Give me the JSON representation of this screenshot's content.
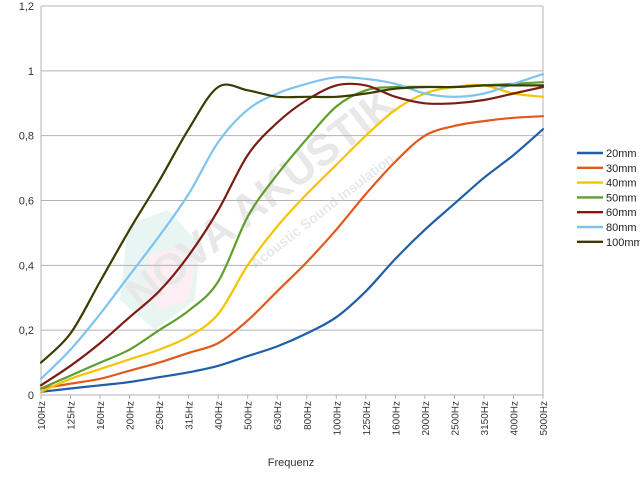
{
  "chart_data": {
    "type": "line",
    "title": "",
    "xlabel": "Frequenz",
    "ylabel": "",
    "categories": [
      "100Hz",
      "125Hz",
      "160Hz",
      "200Hz",
      "250Hz",
      "315Hz",
      "400Hz",
      "500Hz",
      "630Hz",
      "800Hz",
      "1000Hz",
      "1250Hz",
      "1600Hz",
      "2000Hz",
      "2500Hz",
      "3150Hz",
      "4000Hz",
      "5000Hz"
    ],
    "ylim": [
      0,
      1.2
    ],
    "y_ticks": [
      "0",
      "0,2",
      "0,4",
      "0,6",
      "0,8",
      "1",
      "1,2"
    ],
    "grid": true,
    "legend_position": "right",
    "watermark": {
      "line1": "NOVA AKUSTIK",
      "line2": "Acoustic Sound Insulation"
    },
    "series": [
      {
        "name": "20mm",
        "color": "#1f5fa8",
        "values": [
          0.01,
          0.02,
          0.03,
          0.04,
          0.055,
          0.07,
          0.09,
          0.12,
          0.15,
          0.19,
          0.24,
          0.32,
          0.42,
          0.51,
          0.59,
          0.67,
          0.74,
          0.82
        ]
      },
      {
        "name": "30mm",
        "color": "#e2581d",
        "values": [
          0.02,
          0.035,
          0.05,
          0.075,
          0.1,
          0.13,
          0.16,
          0.23,
          0.32,
          0.41,
          0.51,
          0.62,
          0.72,
          0.8,
          0.83,
          0.845,
          0.855,
          0.86
        ]
      },
      {
        "name": "40mm",
        "color": "#f5c400",
        "values": [
          0.01,
          0.05,
          0.08,
          0.11,
          0.14,
          0.18,
          0.25,
          0.4,
          0.52,
          0.62,
          0.71,
          0.8,
          0.88,
          0.93,
          0.95,
          0.955,
          0.93,
          0.92
        ]
      },
      {
        "name": "50mm",
        "color": "#5f9e2f",
        "values": [
          0.02,
          0.06,
          0.1,
          0.14,
          0.2,
          0.26,
          0.35,
          0.55,
          0.68,
          0.79,
          0.89,
          0.94,
          0.95,
          0.95,
          0.95,
          0.955,
          0.96,
          0.965
        ]
      },
      {
        "name": "60mm",
        "color": "#7b1c12",
        "values": [
          0.03,
          0.09,
          0.16,
          0.24,
          0.32,
          0.43,
          0.57,
          0.74,
          0.84,
          0.91,
          0.955,
          0.955,
          0.92,
          0.9,
          0.9,
          0.91,
          0.93,
          0.95
        ]
      },
      {
        "name": "80mm",
        "color": "#7fc3ef",
        "values": [
          0.05,
          0.14,
          0.25,
          0.37,
          0.49,
          0.62,
          0.78,
          0.88,
          0.93,
          0.96,
          0.98,
          0.975,
          0.96,
          0.93,
          0.92,
          0.93,
          0.96,
          0.99
        ]
      },
      {
        "name": "100mm",
        "color": "#3c3c00",
        "values": [
          0.1,
          0.19,
          0.35,
          0.51,
          0.66,
          0.82,
          0.95,
          0.94,
          0.92,
          0.92,
          0.92,
          0.93,
          0.945,
          0.95,
          0.95,
          0.955,
          0.955,
          0.955
        ]
      }
    ]
  }
}
